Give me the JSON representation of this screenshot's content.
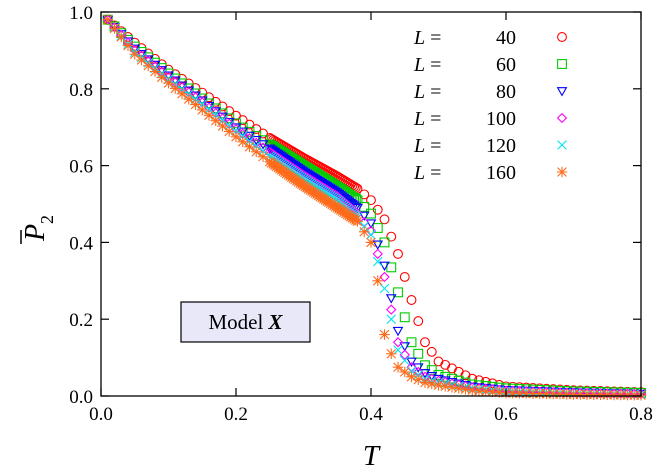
{
  "chart_data": {
    "type": "scatter",
    "xlabel": "T",
    "ylabel_main": "P",
    "ylabel_sub": "2",
    "xlim": [
      0.0,
      0.8
    ],
    "ylim": [
      0.0,
      1.0
    ],
    "x_ticks": [
      "0.0",
      "0.2",
      "0.4",
      "0.6",
      "0.8"
    ],
    "y_ticks": [
      "0.0",
      "0.2",
      "0.4",
      "0.6",
      "0.8",
      "1.0"
    ],
    "annotation": {
      "text": "Model ",
      "emph": "X"
    },
    "legend_position": "top-right",
    "series": [
      {
        "prefix": "L =",
        "size": "40",
        "marker": "circle",
        "color": "#ff0000",
        "curve": [
          [
            0.01,
            0.98
          ],
          [
            0.05,
            0.92
          ],
          [
            0.1,
            0.85
          ],
          [
            0.15,
            0.79
          ],
          [
            0.2,
            0.73
          ],
          [
            0.25,
            0.672
          ],
          [
            0.3,
            0.62
          ],
          [
            0.35,
            0.572
          ],
          [
            0.38,
            0.54
          ],
          [
            0.4,
            0.51
          ],
          [
            0.42,
            0.46
          ],
          [
            0.44,
            0.37
          ],
          [
            0.46,
            0.25
          ],
          [
            0.48,
            0.14
          ],
          [
            0.5,
            0.09
          ],
          [
            0.55,
            0.045
          ],
          [
            0.6,
            0.025
          ],
          [
            0.7,
            0.015
          ],
          [
            0.8,
            0.01
          ]
        ]
      },
      {
        "prefix": "L =",
        "size": "60",
        "marker": "square",
        "color": "#00cc00",
        "curve": [
          [
            0.01,
            0.98
          ],
          [
            0.05,
            0.91
          ],
          [
            0.1,
            0.84
          ],
          [
            0.15,
            0.775
          ],
          [
            0.2,
            0.71
          ],
          [
            0.25,
            0.655
          ],
          [
            0.3,
            0.6
          ],
          [
            0.35,
            0.545
          ],
          [
            0.38,
            0.51
          ],
          [
            0.4,
            0.475
          ],
          [
            0.42,
            0.4
          ],
          [
            0.44,
            0.27
          ],
          [
            0.46,
            0.14
          ],
          [
            0.48,
            0.08
          ],
          [
            0.5,
            0.055
          ],
          [
            0.55,
            0.03
          ],
          [
            0.6,
            0.02
          ],
          [
            0.7,
            0.012
          ],
          [
            0.8,
            0.008
          ]
        ]
      },
      {
        "prefix": "L =",
        "size": "80",
        "marker": "triangle-down",
        "color": "#0000ff",
        "curve": [
          [
            0.01,
            0.98
          ],
          [
            0.05,
            0.905
          ],
          [
            0.1,
            0.835
          ],
          [
            0.15,
            0.77
          ],
          [
            0.2,
            0.7
          ],
          [
            0.25,
            0.645
          ],
          [
            0.3,
            0.585
          ],
          [
            0.35,
            0.53
          ],
          [
            0.38,
            0.49
          ],
          [
            0.4,
            0.45
          ],
          [
            0.42,
            0.34
          ],
          [
            0.44,
            0.17
          ],
          [
            0.46,
            0.09
          ],
          [
            0.48,
            0.06
          ],
          [
            0.5,
            0.045
          ],
          [
            0.55,
            0.025
          ],
          [
            0.6,
            0.016
          ],
          [
            0.7,
            0.01
          ],
          [
            0.8,
            0.006
          ]
        ]
      },
      {
        "prefix": "L =",
        "size": "100",
        "marker": "diamond",
        "color": "#ff00ff",
        "curve": [
          [
            0.01,
            0.98
          ],
          [
            0.05,
            0.9
          ],
          [
            0.1,
            0.83
          ],
          [
            0.15,
            0.765
          ],
          [
            0.2,
            0.695
          ],
          [
            0.25,
            0.635
          ],
          [
            0.3,
            0.575
          ],
          [
            0.35,
            0.52
          ],
          [
            0.38,
            0.475
          ],
          [
            0.4,
            0.43
          ],
          [
            0.42,
            0.31
          ],
          [
            0.44,
            0.14
          ],
          [
            0.46,
            0.075
          ],
          [
            0.48,
            0.05
          ],
          [
            0.5,
            0.04
          ],
          [
            0.55,
            0.022
          ],
          [
            0.6,
            0.014
          ],
          [
            0.7,
            0.008
          ],
          [
            0.8,
            0.005
          ]
        ]
      },
      {
        "prefix": "L =",
        "size": "120",
        "marker": "cross",
        "color": "#00e5ee",
        "curve": [
          [
            0.01,
            0.98
          ],
          [
            0.05,
            0.895
          ],
          [
            0.1,
            0.825
          ],
          [
            0.15,
            0.76
          ],
          [
            0.2,
            0.69
          ],
          [
            0.25,
            0.625
          ],
          [
            0.3,
            0.565
          ],
          [
            0.35,
            0.51
          ],
          [
            0.38,
            0.465
          ],
          [
            0.4,
            0.42
          ],
          [
            0.42,
            0.28
          ],
          [
            0.44,
            0.12
          ],
          [
            0.46,
            0.065
          ],
          [
            0.48,
            0.045
          ],
          [
            0.5,
            0.035
          ],
          [
            0.55,
            0.02
          ],
          [
            0.6,
            0.012
          ],
          [
            0.7,
            0.007
          ],
          [
            0.8,
            0.004
          ]
        ]
      },
      {
        "prefix": "L =",
        "size": "160",
        "marker": "star",
        "color": "#ff6a1a",
        "curve": [
          [
            0.01,
            0.98
          ],
          [
            0.05,
            0.89
          ],
          [
            0.1,
            0.815
          ],
          [
            0.15,
            0.745
          ],
          [
            0.2,
            0.675
          ],
          [
            0.25,
            0.61
          ],
          [
            0.3,
            0.548
          ],
          [
            0.35,
            0.49
          ],
          [
            0.38,
            0.455
          ],
          [
            0.4,
            0.4
          ],
          [
            0.41,
            0.3
          ],
          [
            0.42,
            0.16
          ],
          [
            0.43,
            0.11
          ],
          [
            0.44,
            0.075
          ],
          [
            0.46,
            0.05
          ],
          [
            0.48,
            0.035
          ],
          [
            0.5,
            0.028
          ],
          [
            0.55,
            0.015
          ],
          [
            0.6,
            0.008
          ],
          [
            0.7,
            0.004
          ],
          [
            0.8,
            0.002
          ]
        ]
      }
    ]
  }
}
